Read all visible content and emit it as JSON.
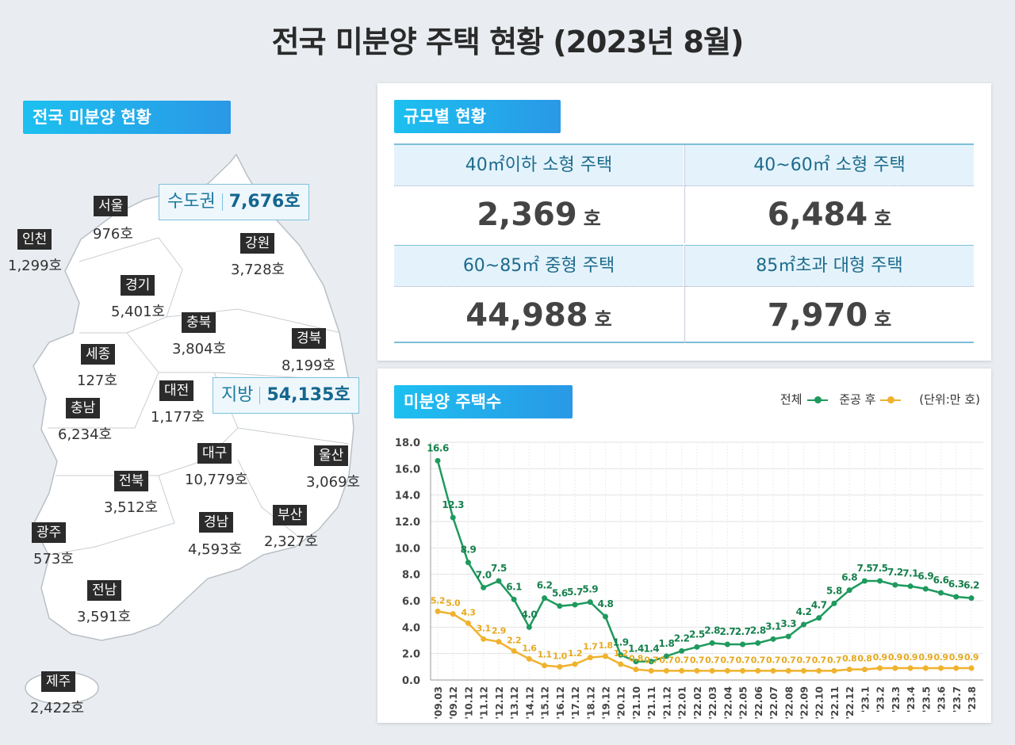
{
  "title": "전국 미분양 주택 현황  (2023년 8월)",
  "map_section": {
    "badge": "전국 미분양 현황",
    "capital": {
      "label": "수도권",
      "value": "7,676호"
    },
    "provincial": {
      "label": "지방",
      "value": "54,135호"
    },
    "regions": [
      {
        "name": "서울",
        "value": "976호"
      },
      {
        "name": "인천",
        "value": "1,299호"
      },
      {
        "name": "강원",
        "value": "3,728호"
      },
      {
        "name": "경기",
        "value": "5,401호"
      },
      {
        "name": "충북",
        "value": "3,804호"
      },
      {
        "name": "경북",
        "value": "8,199호"
      },
      {
        "name": "세종",
        "value": "127호"
      },
      {
        "name": "대전",
        "value": "1,177호"
      },
      {
        "name": "충남",
        "value": "6,234호"
      },
      {
        "name": "대구",
        "value": "10,779호"
      },
      {
        "name": "울산",
        "value": "3,069호"
      },
      {
        "name": "전북",
        "value": "3,512호"
      },
      {
        "name": "부산",
        "value": "2,327호"
      },
      {
        "name": "경남",
        "value": "4,593호"
      },
      {
        "name": "광주",
        "value": "573호"
      },
      {
        "name": "전남",
        "value": "3,591호"
      },
      {
        "name": "제주",
        "value": "2,422호"
      }
    ]
  },
  "size_section": {
    "badge": "규모별 현황",
    "unit": "호",
    "items": [
      {
        "label": "40㎡이하 소형 주택",
        "value": "2,369"
      },
      {
        "label": "40~60㎡ 소형 주택",
        "value": "6,484"
      },
      {
        "label": "60~85㎡ 중형 주택",
        "value": "44,988"
      },
      {
        "label": "85㎡초과 대형 주택",
        "value": "7,970"
      }
    ]
  },
  "chart_section": {
    "badge": "미분양 주택수"
  },
  "chart_data": {
    "type": "line",
    "unit_note": "(단위:만 호)",
    "ylim": [
      0,
      18
    ],
    "yticks": [
      "0.0",
      "2.0",
      "4.0",
      "6.0",
      "8.0",
      "10.0",
      "12.0",
      "14.0",
      "16.0",
      "18.0"
    ],
    "grid": true,
    "legend": "top-right",
    "categories": [
      "'09.03",
      "'09.12",
      "'10.12",
      "'11.12",
      "'12.12",
      "'13.12",
      "'14.12",
      "'15.12",
      "'16.12",
      "'17.12",
      "'18.12",
      "'19.12",
      "'20.12",
      "'21.10",
      "'21.11",
      "'21.12",
      "'22.01",
      "'22.02",
      "'22.03",
      "'22.04",
      "'22.05",
      "'22.06",
      "'22.07",
      "'22.08",
      "'22.09",
      "'22.10",
      "'22.11",
      "'22.12",
      "'23.1",
      "'23.2",
      "'23.3",
      "'23.4",
      "'23.5",
      "'23.6",
      "'23.7",
      "'23.8"
    ],
    "series": [
      {
        "name": "전체",
        "color": "#1e9a5e",
        "values": [
          16.6,
          12.3,
          8.9,
          7.0,
          7.5,
          6.1,
          4.0,
          6.2,
          5.6,
          5.7,
          5.9,
          4.8,
          1.9,
          1.4,
          1.4,
          1.8,
          2.2,
          2.5,
          2.8,
          2.7,
          2.7,
          2.8,
          3.1,
          3.3,
          4.2,
          4.7,
          5.8,
          6.8,
          7.5,
          7.5,
          7.2,
          7.1,
          6.9,
          6.6,
          6.3,
          6.2
        ]
      },
      {
        "name": "준공 후",
        "color": "#f0b22e",
        "values": [
          5.2,
          5.0,
          4.3,
          3.1,
          2.9,
          2.2,
          1.6,
          1.1,
          1.0,
          1.2,
          1.7,
          1.8,
          1.2,
          0.8,
          0.7,
          0.7,
          0.7,
          0.7,
          0.7,
          0.7,
          0.7,
          0.7,
          0.7,
          0.7,
          0.7,
          0.7,
          0.7,
          0.8,
          0.8,
          0.9,
          0.9,
          0.9,
          0.9,
          0.9,
          0.9,
          0.9
        ]
      }
    ]
  }
}
